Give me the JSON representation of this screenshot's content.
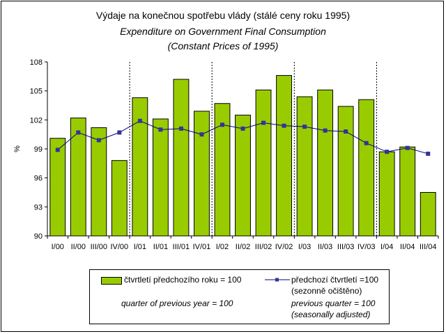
{
  "title": {
    "line1": "Výdaje na konečnou spotřebu vlády (stálé ceny roku 1995)",
    "line2": "Expenditure on Government Final Consumption",
    "line3": "(Constant Prices of 1995)"
  },
  "colors": {
    "bar": "#99cc00",
    "line": "#000080",
    "marker": "#333399"
  },
  "chart_data": {
    "type": "bar",
    "title": "Výdaje na konečnou spotřebu vlády (stálé ceny roku 1995)",
    "xlabel": "",
    "ylabel": "%",
    "ylim": [
      90,
      108
    ],
    "yticks": [
      90,
      93,
      96,
      99,
      102,
      105,
      108
    ],
    "ytick_labels": [
      "90",
      "93",
      "96",
      "99",
      "102",
      "105",
      "108"
    ],
    "grid": false,
    "year_separators_after": [
      "IV/00",
      "IV/01",
      "IV/02",
      "IV/03"
    ],
    "categories": [
      "I/00",
      "II/00",
      "III/00",
      "IV/00",
      "I/01",
      "II/01",
      "III/01",
      "IV/01",
      "I/02",
      "II/02",
      "III/02",
      "IV/02",
      "I/03",
      "II/03",
      "III/03",
      "IV/03",
      "I/04",
      "II/04",
      "III/04"
    ],
    "series": [
      {
        "name": "čtvrtletí předchozího roku = 100",
        "type": "bar",
        "values": [
          100.1,
          102.2,
          101.2,
          97.8,
          104.3,
          102.1,
          106.2,
          102.9,
          103.7,
          102.5,
          105.1,
          106.6,
          104.4,
          105.1,
          103.4,
          104.1,
          98.7,
          99.2,
          94.5
        ]
      },
      {
        "name": "předchozí čtvrtletí =100 (sezonně očištěno)",
        "type": "line",
        "values": [
          98.9,
          100.7,
          99.9,
          100.7,
          101.9,
          101.0,
          101.1,
          100.5,
          101.5,
          101.1,
          101.7,
          101.4,
          101.3,
          100.9,
          100.8,
          99.6,
          98.7,
          99.1,
          98.5
        ]
      }
    ]
  },
  "legend": {
    "bar_label": "čtvrtletí předchozího roku = 100",
    "bar_label_en": "quarter of previous year = 100",
    "line_label": "předchozí čtvrtletí =100",
    "line_label_sub": "(sezonně očištěno)",
    "line_label_en": "previous quarter = 100",
    "line_label_en_sub": "(seasonally adjusted)"
  }
}
